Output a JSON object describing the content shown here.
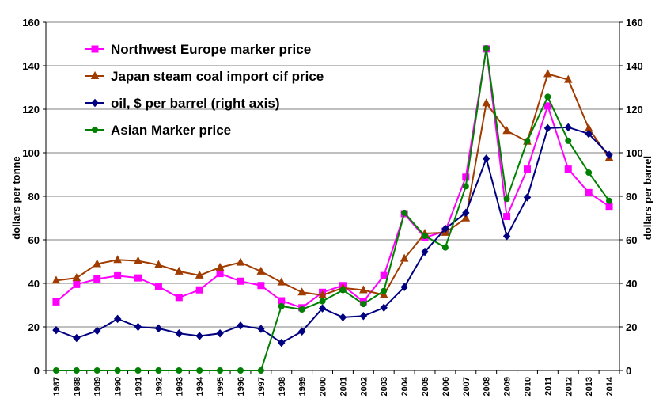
{
  "chart_data": {
    "type": "line",
    "x": [
      "1987",
      "1988",
      "1989",
      "1990",
      "1991",
      "1992",
      "1993",
      "1994",
      "1995",
      "1996",
      "1997",
      "1998",
      "1999",
      "2000",
      "2001",
      "2002",
      "2003",
      "2004",
      "2005",
      "2006",
      "2007",
      "2008",
      "2009",
      "2010",
      "2011",
      "2012",
      "2013",
      "2014"
    ],
    "ylabel": "dollars per tonne",
    "y2label": "dollars per barrel",
    "ylim": [
      0,
      160
    ],
    "y2lim": [
      0,
      160
    ],
    "yticks": [
      0,
      20,
      40,
      60,
      80,
      100,
      120,
      140,
      160
    ],
    "grid": "horizontal",
    "legend_position": "top-left",
    "series": [
      {
        "name": "Northwest Europe marker price",
        "color": "#ff00ff",
        "marker": "square",
        "axis": "left",
        "values": [
          31.5,
          39.5,
          42,
          43.5,
          42.5,
          38.5,
          33.5,
          37,
          44.5,
          41,
          39,
          32,
          28.8,
          35.9,
          39,
          31.6,
          43.6,
          72,
          61,
          64,
          88.8,
          147.7,
          70.7,
          92.5,
          121.5,
          92.5,
          81.7,
          75.4
        ]
      },
      {
        "name": "Japan steam coal import cif price",
        "color": "#a13c00",
        "marker": "triangle",
        "axis": "left",
        "values": [
          41.3,
          42.5,
          48.9,
          50.8,
          50.3,
          48.5,
          45.5,
          43.7,
          47.3,
          49.6,
          45.5,
          40.5,
          35.9,
          34.6,
          37.9,
          36.9,
          34.7,
          51.4,
          62.9,
          63.3,
          69.9,
          122.8,
          110.1,
          105.2,
          136.2,
          133.6,
          111.2,
          97.7
        ]
      },
      {
        "name": "oil, $ per barrel (right axis)",
        "color": "#000080",
        "marker": "diamond",
        "axis": "right",
        "values": [
          18.5,
          14.9,
          18.2,
          23.7,
          20,
          19.3,
          17,
          15.8,
          17,
          20.6,
          19.1,
          12.7,
          17.9,
          28.5,
          24.4,
          25,
          28.8,
          38.3,
          54.5,
          65.1,
          72.4,
          97.3,
          61.7,
          79.5,
          111.3,
          111.7,
          108.7,
          99
        ]
      },
      {
        "name": "Asian Marker price",
        "color": "#008000",
        "marker": "circle",
        "axis": "left",
        "values": [
          0,
          0,
          0,
          0,
          0,
          0,
          0,
          0,
          0,
          0,
          0,
          29.5,
          28,
          31.8,
          36.9,
          30.5,
          36.5,
          72.4,
          61.8,
          56.5,
          84.6,
          148,
          78.8,
          105.4,
          125.7,
          105.5,
          90.9,
          77.9
        ]
      }
    ]
  }
}
